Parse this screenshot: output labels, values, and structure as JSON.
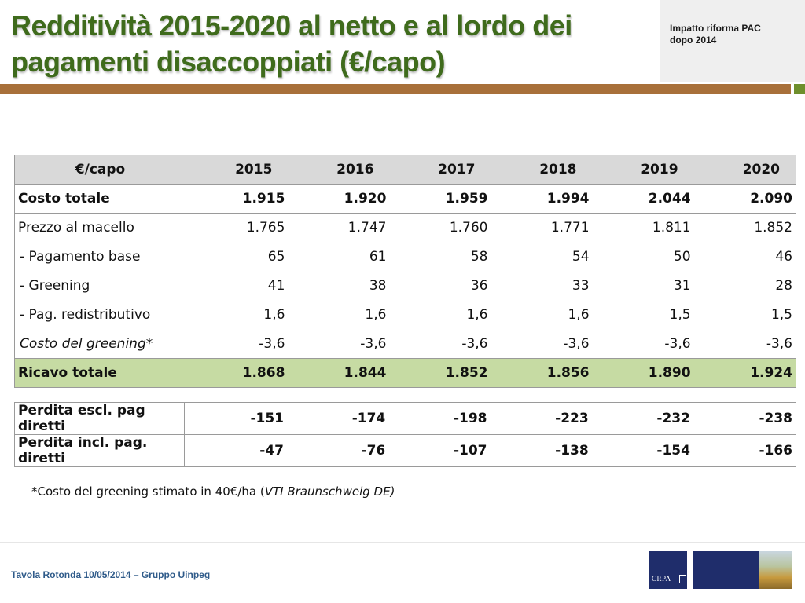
{
  "header": {
    "title_line1": "Redditività 2015-2020 al netto e al lordo dei",
    "title_line2": "pagamenti disaccoppiati (€/capo)",
    "topic_line1": "Impatto riforma PAC",
    "topic_line2": "dopo 2014"
  },
  "table": {
    "unit_header": "€/capo",
    "years": [
      "2015",
      "2016",
      "2017",
      "2018",
      "2019",
      "2020"
    ],
    "rows": [
      {
        "label": "Costo totale",
        "values": [
          "1.915",
          "1.920",
          "1.959",
          "1.994",
          "2.044",
          "2.090"
        ]
      },
      {
        "label": "Prezzo al macello",
        "values": [
          "1.765",
          "1.747",
          "1.760",
          "1.771",
          "1.811",
          "1.852"
        ]
      },
      {
        "label": " - Pagamento base",
        "values": [
          "65",
          "61",
          "58",
          "54",
          "50",
          "46"
        ]
      },
      {
        "label": " - Greening",
        "values": [
          "41",
          "38",
          "36",
          "33",
          "31",
          "28"
        ]
      },
      {
        "label": " - Pag. redistributivo",
        "values": [
          "1,6",
          "1,6",
          "1,6",
          "1,6",
          "1,5",
          "1,5"
        ]
      },
      {
        "label": " Costo del greening*",
        "values": [
          "-3,6",
          "-3,6",
          "-3,6",
          "-3,6",
          "-3,6",
          "-3,6"
        ]
      },
      {
        "label": "Ricavo totale",
        "values": [
          "1.868",
          "1.844",
          "1.852",
          "1.856",
          "1.890",
          "1.924"
        ]
      }
    ],
    "losses": [
      {
        "label": "Perdita escl. pag diretti",
        "values": [
          "-151",
          "-174",
          "-198",
          "-223",
          "-232",
          "-238"
        ]
      },
      {
        "label": "Perdita incl. pag. diretti",
        "values": [
          "-47",
          "-76",
          "-107",
          "-138",
          "-154",
          "-166"
        ]
      }
    ]
  },
  "note": {
    "text": "*Costo del greening stimato in 40€/ha (",
    "source": "VTI Braunschweig DE)"
  },
  "footer": {
    "text": "Tavola Rotonda  10/05/2014 – Gruppo Uinpeg",
    "logo_text": "CRPA"
  },
  "colors": {
    "title": "#3f6b1c",
    "rule_brown": "#a8703a",
    "rule_green": "#6e8f2c",
    "header_gray": "#d9d9d9",
    "highlight_green": "#c6dba3",
    "footer_text": "#2f5b8a",
    "logo_navy": "#1f2d6b"
  }
}
